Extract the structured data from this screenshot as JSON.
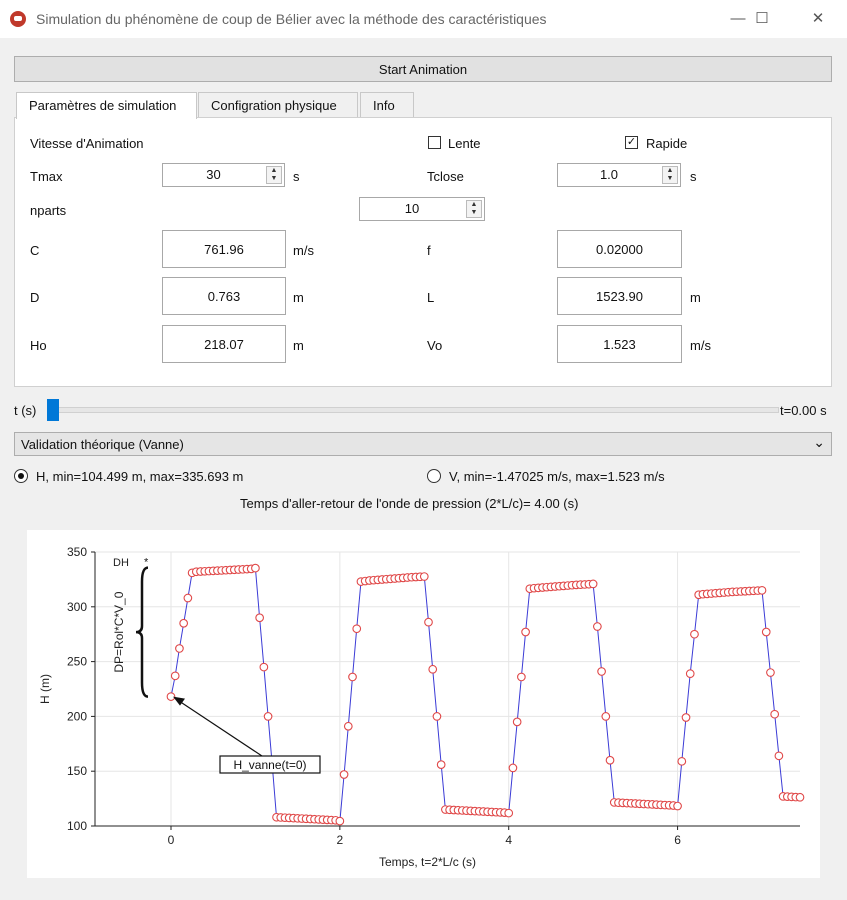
{
  "window": {
    "title": "Simulation du phénomène de coup de Bélier avec la méthode des caractéristiques",
    "minimize_glyph": "—",
    "maximize_glyph": "☐",
    "close_glyph": "✕"
  },
  "toolbar": {
    "start_label": "Start Animation"
  },
  "tabs": [
    {
      "label": "Paramètres de simulation",
      "active": true
    },
    {
      "label": "Configration physique",
      "active": false
    },
    {
      "label": "Info",
      "active": false
    }
  ],
  "params": {
    "vitesse_label": "Vitesse d'Animation",
    "lente_label": "Lente",
    "lente_checked": false,
    "rapide_label": "Rapide",
    "rapide_checked": true,
    "tmax_label": "Tmax",
    "tmax_value": "30",
    "tmax_unit": "s",
    "tclose_label": "Tclose",
    "tclose_value": "1.0",
    "tclose_unit": "s",
    "nparts_label": "nparts",
    "nparts_value": "10",
    "c_label": "C",
    "c_value": "761.96",
    "c_unit": "m/s",
    "f_label": "f",
    "f_value": "0.02000",
    "d_label": "D",
    "d_value": "0.763",
    "d_unit": "m",
    "l_label": "L",
    "l_value": "1523.90",
    "l_unit": "m",
    "ho_label": "Ho",
    "ho_value": "218.07",
    "ho_unit": "m",
    "vo_label": "Vo",
    "vo_value": "1.523",
    "vo_unit": "m/s"
  },
  "slider": {
    "label": "t (s)",
    "readout": "t=0.00 s",
    "position_fraction": 0.0
  },
  "combo": {
    "selected": "Validation théorique (Vanne)",
    "arrow": "⌄"
  },
  "radios": {
    "h_label": "H, min=104.499 m, max=335.693 m",
    "h_selected": true,
    "v_label": "V, min=-1.47025 m/s, max=1.523 m/s",
    "v_selected": false
  },
  "info_text": "Temps d'aller-retour de l'onde de pression (2*L/c)= 4.00 (s)",
  "chart_data": {
    "type": "line",
    "xlabel": "Temps, t=2*L/c (s)",
    "ylabel": "H (m)",
    "xlim": [
      -0.9,
      7.45
    ],
    "ylim": [
      100,
      350
    ],
    "xticks": [
      0,
      2,
      4,
      6
    ],
    "yticks": [
      100,
      150,
      200,
      250,
      300,
      350
    ],
    "grid": true,
    "line_color": "#3b3bd6",
    "marker_color": "#e04848",
    "annotations": {
      "dh_label": "DH",
      "dp_label": "DP=Rol*C*V_0",
      "h_vanne_label": "H_vanne(t=0)"
    },
    "series": [
      {
        "points": [
          [
            0.0,
            218.07
          ],
          [
            0.05,
            237
          ],
          [
            0.1,
            262
          ],
          [
            0.15,
            285
          ],
          [
            0.2,
            308
          ],
          [
            0.25,
            331
          ],
          [
            0.3,
            332
          ],
          [
            0.35,
            332.2
          ],
          [
            0.4,
            332.4
          ],
          [
            0.45,
            332.6
          ],
          [
            0.5,
            332.8
          ],
          [
            0.55,
            333
          ],
          [
            0.6,
            333.2
          ],
          [
            0.65,
            333.4
          ],
          [
            0.7,
            333.6
          ],
          [
            0.75,
            333.8
          ],
          [
            0.8,
            334
          ],
          [
            0.85,
            334.2
          ],
          [
            0.9,
            334.4
          ],
          [
            0.95,
            334.6
          ],
          [
            1.0,
            335.3
          ],
          [
            1.05,
            290
          ],
          [
            1.1,
            245
          ],
          [
            1.15,
            200
          ],
          [
            1.2,
            155
          ],
          [
            1.25,
            108
          ],
          [
            1.3,
            107.8
          ],
          [
            1.35,
            107.6
          ],
          [
            1.4,
            107.4
          ],
          [
            1.45,
            107.2
          ],
          [
            1.5,
            107
          ],
          [
            1.55,
            106.8
          ],
          [
            1.6,
            106.6
          ],
          [
            1.65,
            106.4
          ],
          [
            1.7,
            106.2
          ],
          [
            1.75,
            106
          ],
          [
            1.8,
            105.8
          ],
          [
            1.85,
            105.6
          ],
          [
            1.9,
            105.4
          ],
          [
            1.95,
            105.2
          ],
          [
            2.0,
            104.5
          ],
          [
            2.05,
            147
          ],
          [
            2.1,
            191
          ],
          [
            2.15,
            236
          ],
          [
            2.2,
            280
          ],
          [
            2.25,
            323
          ],
          [
            2.3,
            323.5
          ],
          [
            2.35,
            324
          ],
          [
            2.4,
            324.3
          ],
          [
            2.45,
            324.6
          ],
          [
            2.5,
            324.9
          ],
          [
            2.55,
            325.2
          ],
          [
            2.6,
            325.5
          ],
          [
            2.65,
            325.8
          ],
          [
            2.7,
            326.1
          ],
          [
            2.75,
            326.4
          ],
          [
            2.8,
            326.7
          ],
          [
            2.85,
            327
          ],
          [
            2.9,
            327.2
          ],
          [
            2.95,
            327.4
          ],
          [
            3.0,
            327.6
          ],
          [
            3.05,
            286
          ],
          [
            3.1,
            243
          ],
          [
            3.15,
            200
          ],
          [
            3.2,
            156
          ],
          [
            3.25,
            115
          ],
          [
            3.3,
            114.8
          ],
          [
            3.35,
            114.6
          ],
          [
            3.4,
            114.4
          ],
          [
            3.45,
            114.2
          ],
          [
            3.5,
            114
          ],
          [
            3.55,
            113.8
          ],
          [
            3.6,
            113.6
          ],
          [
            3.65,
            113.4
          ],
          [
            3.7,
            113.2
          ],
          [
            3.75,
            113
          ],
          [
            3.8,
            112.8
          ],
          [
            3.85,
            112.6
          ],
          [
            3.9,
            112.4
          ],
          [
            3.95,
            112.2
          ],
          [
            4.0,
            111.8
          ],
          [
            4.05,
            153
          ],
          [
            4.1,
            195
          ],
          [
            4.15,
            236
          ],
          [
            4.2,
            277
          ],
          [
            4.25,
            316.5
          ],
          [
            4.3,
            317
          ],
          [
            4.35,
            317.3
          ],
          [
            4.4,
            317.6
          ],
          [
            4.45,
            317.9
          ],
          [
            4.5,
            318.2
          ],
          [
            4.55,
            318.5
          ],
          [
            4.6,
            318.8
          ],
          [
            4.65,
            319.1
          ],
          [
            4.7,
            319.4
          ],
          [
            4.75,
            319.7
          ],
          [
            4.8,
            320
          ],
          [
            4.85,
            320.2
          ],
          [
            4.9,
            320.4
          ],
          [
            4.95,
            320.6
          ],
          [
            5.0,
            320.9
          ],
          [
            5.05,
            282
          ],
          [
            5.1,
            241
          ],
          [
            5.15,
            200
          ],
          [
            5.2,
            160
          ],
          [
            5.25,
            121.5
          ],
          [
            5.3,
            121.3
          ],
          [
            5.35,
            121.1
          ],
          [
            5.4,
            120.9
          ],
          [
            5.45,
            120.7
          ],
          [
            5.5,
            120.5
          ],
          [
            5.55,
            120.3
          ],
          [
            5.6,
            120.1
          ],
          [
            5.65,
            119.9
          ],
          [
            5.7,
            119.7
          ],
          [
            5.75,
            119.5
          ],
          [
            5.8,
            119.3
          ],
          [
            5.85,
            119.1
          ],
          [
            5.9,
            118.9
          ],
          [
            5.95,
            118.7
          ],
          [
            6.0,
            118.2
          ],
          [
            6.05,
            159
          ],
          [
            6.1,
            199
          ],
          [
            6.15,
            239
          ],
          [
            6.2,
            275
          ],
          [
            6.25,
            311
          ],
          [
            6.3,
            311.5
          ],
          [
            6.35,
            311.8
          ],
          [
            6.4,
            312.1
          ],
          [
            6.45,
            312.4
          ],
          [
            6.5,
            312.7
          ],
          [
            6.55,
            313
          ],
          [
            6.6,
            313.3
          ],
          [
            6.65,
            313.6
          ],
          [
            6.7,
            313.8
          ],
          [
            6.75,
            314
          ],
          [
            6.8,
            314.2
          ],
          [
            6.85,
            314.4
          ],
          [
            6.9,
            314.6
          ],
          [
            6.95,
            314.8
          ],
          [
            7.0,
            315
          ],
          [
            7.05,
            277
          ],
          [
            7.1,
            240
          ],
          [
            7.15,
            202
          ],
          [
            7.2,
            164
          ],
          [
            7.25,
            127
          ],
          [
            7.3,
            126.8
          ],
          [
            7.35,
            126.6
          ],
          [
            7.4,
            126.4
          ],
          [
            7.45,
            126.2
          ]
        ]
      }
    ]
  }
}
